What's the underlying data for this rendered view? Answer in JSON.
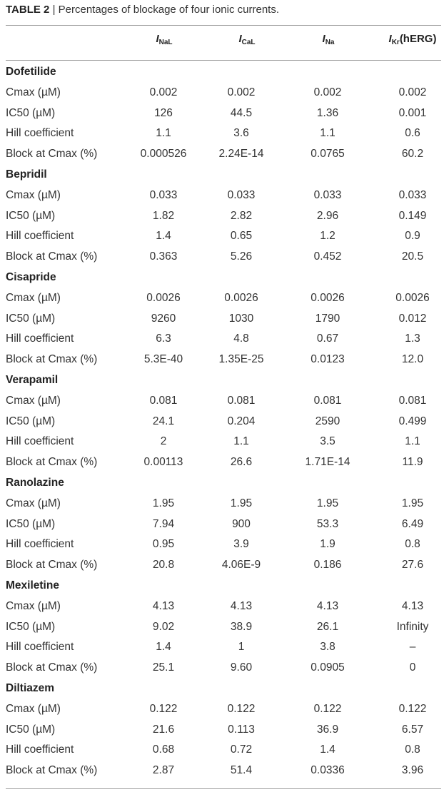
{
  "caption": {
    "label": "TABLE 2",
    "separator": "|",
    "text": "Percentages of blockage of four ionic currents."
  },
  "columns": [
    {
      "main": "I",
      "sub": "NaL",
      "suffix": ""
    },
    {
      "main": "I",
      "sub": "CaL",
      "suffix": ""
    },
    {
      "main": "I",
      "sub": "Na",
      "suffix": ""
    },
    {
      "main": "I",
      "sub": "Kr",
      "suffix": "(hERG)"
    }
  ],
  "groups": [
    {
      "name": "Dofetilide",
      "rows": [
        {
          "label": "Cmax (µM)",
          "values": [
            "0.002",
            "0.002",
            "0.002",
            "0.002"
          ]
        },
        {
          "label": "IC50 (µM)",
          "values": [
            "126",
            "44.5",
            "1.36",
            "0.001"
          ]
        },
        {
          "label": "Hill coefficient",
          "values": [
            "1.1",
            "3.6",
            "1.1",
            "0.6"
          ]
        },
        {
          "label": "Block at Cmax (%)",
          "values": [
            "0.000526",
            "2.24E-14",
            "0.0765",
            "60.2"
          ]
        }
      ]
    },
    {
      "name": "Bepridil",
      "rows": [
        {
          "label": "Cmax (µM)",
          "values": [
            "0.033",
            "0.033",
            "0.033",
            "0.033"
          ]
        },
        {
          "label": "IC50 (µM)",
          "values": [
            "1.82",
            "2.82",
            "2.96",
            "0.149"
          ]
        },
        {
          "label": "Hill coefficient",
          "values": [
            "1.4",
            "0.65",
            "1.2",
            "0.9"
          ]
        },
        {
          "label": "Block at Cmax (%)",
          "values": [
            "0.363",
            "5.26",
            "0.452",
            "20.5"
          ]
        }
      ]
    },
    {
      "name": "Cisapride",
      "rows": [
        {
          "label": "Cmax (µM)",
          "values": [
            "0.0026",
            "0.0026",
            "0.0026",
            "0.0026"
          ]
        },
        {
          "label": "IC50 (µM)",
          "values": [
            "9260",
            "1030",
            "1790",
            "0.012"
          ]
        },
        {
          "label": "Hill coefficient",
          "values": [
            "6.3",
            "4.8",
            "0.67",
            "1.3"
          ]
        },
        {
          "label": "Block at Cmax (%)",
          "values": [
            "5.3E-40",
            "1.35E-25",
            "0.0123",
            "12.0"
          ]
        }
      ]
    },
    {
      "name": "Verapamil",
      "rows": [
        {
          "label": "Cmax (µM)",
          "values": [
            "0.081",
            "0.081",
            "0.081",
            "0.081"
          ]
        },
        {
          "label": "IC50 (µM)",
          "values": [
            "24.1",
            "0.204",
            "2590",
            "0.499"
          ]
        },
        {
          "label": "Hill coefficient",
          "values": [
            "2",
            "1.1",
            "3.5",
            "1.1"
          ]
        },
        {
          "label": "Block at Cmax (%)",
          "values": [
            "0.00113",
            "26.6",
            "1.71E-14",
            "11.9"
          ]
        }
      ]
    },
    {
      "name": "Ranolazine",
      "rows": [
        {
          "label": "Cmax (µM)",
          "values": [
            "1.95",
            "1.95",
            "1.95",
            "1.95"
          ]
        },
        {
          "label": "IC50 (µM)",
          "values": [
            "7.94",
            "900",
            "53.3",
            "6.49"
          ]
        },
        {
          "label": "Hill coefficient",
          "values": [
            "0.95",
            "3.9",
            "1.9",
            "0.8"
          ]
        },
        {
          "label": "Block at Cmax (%)",
          "values": [
            "20.8",
            "4.06E-9",
            "0.186",
            "27.6"
          ]
        }
      ]
    },
    {
      "name": "Mexiletine",
      "rows": [
        {
          "label": "Cmax (µM)",
          "values": [
            "4.13",
            "4.13",
            "4.13",
            "4.13"
          ]
        },
        {
          "label": "IC50 (µM)",
          "values": [
            "9.02",
            "38.9",
            "26.1",
            "Infinity"
          ]
        },
        {
          "label": "Hill coefficient",
          "values": [
            "1.4",
            "1",
            "3.8",
            "–"
          ]
        },
        {
          "label": "Block at Cmax (%)",
          "values": [
            "25.1",
            "9.60",
            "0.0905",
            "0"
          ]
        }
      ]
    },
    {
      "name": "Diltiazem",
      "rows": [
        {
          "label": "Cmax (µM)",
          "values": [
            "0.122",
            "0.122",
            "0.122",
            "0.122"
          ]
        },
        {
          "label": "IC50 (µM)",
          "values": [
            "21.6",
            "0.113",
            "36.9",
            "6.57"
          ]
        },
        {
          "label": "Hill coefficient",
          "values": [
            "0.68",
            "0.72",
            "1.4",
            "0.8"
          ]
        },
        {
          "label": "Block at Cmax (%)",
          "values": [
            "2.87",
            "51.4",
            "0.0336",
            "3.96"
          ]
        }
      ]
    }
  ]
}
